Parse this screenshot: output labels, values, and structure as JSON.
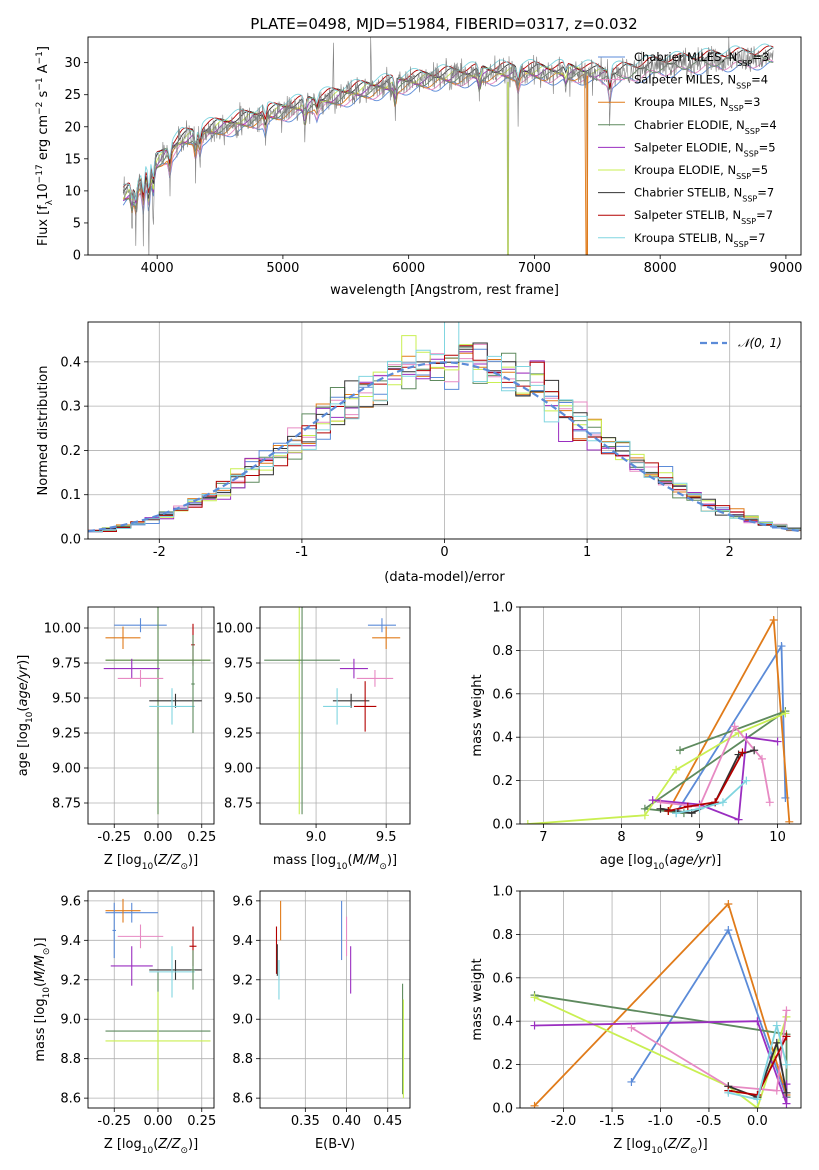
{
  "figure": {
    "title": "PLATE=0498, MJD=51984, FIBERID=0317, z=0.032"
  },
  "colors": {
    "chabrier_miles": "#5b8bd8",
    "salpeter_miles": "#e78ac3",
    "kroupa_miles": "#e07b1a",
    "chabrier_elodie": "#5e8a5e",
    "salpeter_elodie": "#9a2ec0",
    "kroupa_elodie": "#c9ef52",
    "chabrier_stelib": "#333333",
    "salpeter_stelib": "#b30000",
    "kroupa_stelib": "#80d5e0",
    "data": "#7f7f7f",
    "normal": "#5b8bd8",
    "grid": "#b0b0b0"
  },
  "chart_data": [
    {
      "id": "spectrum",
      "type": "line",
      "title": "PLATE=0498, MJD=51984, FIBERID=0317, z=0.032",
      "xlabel": "wavelength [Angstrom, rest frame]",
      "ylabel": "Flux [f_λ 10^-17 erg cm^-2 s^-1 A^-1]",
      "xlim": [
        3450,
        9120
      ],
      "ylim": [
        0,
        34
      ],
      "xticks": [
        4000,
        5000,
        6000,
        7000,
        8000,
        9000
      ],
      "yticks": [
        0,
        5,
        10,
        15,
        20,
        25,
        30
      ],
      "grid": false,
      "legend_position": "right",
      "legend": [
        {
          "label": "Chabrier MILES, N_SSP=3",
          "text": "Chabrier MILES, N",
          "sub": "SSP",
          "tail": "=3",
          "color_key": "chabrier_miles"
        },
        {
          "label": "Salpeter MILES, N_SSP=4",
          "text": "Salpeter MILES, N",
          "sub": "SSP",
          "tail": "=4",
          "color_key": "salpeter_miles"
        },
        {
          "label": "Kroupa MILES, N_SSP=3",
          "text": "Kroupa MILES, N",
          "sub": "SSP",
          "tail": "=3",
          "color_key": "kroupa_miles"
        },
        {
          "label": "Chabrier ELODIE, N_SSP=4",
          "text": "Chabrier ELODIE, N",
          "sub": "SSP",
          "tail": "=4",
          "color_key": "chabrier_elodie"
        },
        {
          "label": "Salpeter ELODIE, N_SSP=5",
          "text": "Salpeter ELODIE, N",
          "sub": "SSP",
          "tail": "=5",
          "color_key": "salpeter_elodie"
        },
        {
          "label": "Kroupa ELODIE, N_SSP=5",
          "text": "Kroupa ELODIE, N",
          "sub": "SSP",
          "tail": "=5",
          "color_key": "kroupa_elodie"
        },
        {
          "label": "Chabrier STELIB, N_SSP=7",
          "text": "Chabrier STELIB, N",
          "sub": "SSP",
          "tail": "=7",
          "color_key": "chabrier_stelib"
        },
        {
          "label": "Salpeter STELIB, N_SSP=7",
          "text": "Salpeter STELIB, N",
          "sub": "SSP",
          "tail": "=7",
          "color_key": "salpeter_stelib"
        },
        {
          "label": "Kroupa STELIB, N_SSP=7",
          "text": "Kroupa STELIB, N",
          "sub": "SSP",
          "tail": "=7",
          "color_key": "kroupa_stelib"
        }
      ],
      "continuum_x": [
        3730,
        3850,
        4000,
        4200,
        4500,
        4800,
        5200,
        5600,
        6000,
        6400,
        6800,
        7200,
        7400,
        7600,
        8000,
        8500,
        8900
      ],
      "continuum_y": [
        9,
        11,
        14.5,
        18,
        20,
        21.5,
        23.5,
        25.5,
        27,
        28,
        28.5,
        28.5,
        28.5,
        28,
        29.5,
        30.5,
        31
      ],
      "features": [
        {
          "x": 3800,
          "depth": -4
        },
        {
          "x": 3830,
          "depth": -5
        },
        {
          "x": 3890,
          "depth": -6
        },
        {
          "x": 3934,
          "depth": -8
        },
        {
          "x": 3968,
          "depth": -6
        },
        {
          "x": 4101,
          "depth": -4
        },
        {
          "x": 4305,
          "depth": -4
        },
        {
          "x": 4340,
          "depth": -3
        },
        {
          "x": 4861,
          "depth": -3
        },
        {
          "x": 5175,
          "depth": -4
        },
        {
          "x": 5270,
          "depth": -2
        },
        {
          "x": 5400,
          "depth": 8
        },
        {
          "x": 5577,
          "depth": 4
        },
        {
          "x": 5700,
          "depth": 6
        },
        {
          "x": 5893,
          "depth": -4
        },
        {
          "x": 6300,
          "depth": 3
        },
        {
          "x": 6563,
          "depth": -3
        },
        {
          "x": 6870,
          "depth": -3
        },
        {
          "x": 7250,
          "depth": -2
        },
        {
          "x": 7600,
          "depth": -4
        }
      ],
      "data_gaps": [
        {
          "x": 6790,
          "note": "masked region (flux drops to 0)"
        },
        {
          "x": 7420,
          "note": "masked region (flux drops to 0)"
        }
      ]
    },
    {
      "id": "residual_histogram",
      "type": "line",
      "xlabel": "(data-model)/error",
      "ylabel": "Normed distribution",
      "xlim": [
        -2.5,
        2.5
      ],
      "ylim": [
        0,
        0.49
      ],
      "xticks": [
        -2,
        -1,
        0,
        1,
        2
      ],
      "yticks": [
        0.0,
        0.1,
        0.2,
        0.3,
        0.4
      ],
      "grid": true,
      "legend_position": "upper right",
      "legend": [
        {
          "label": "N(0,1)",
          "text": "𝒩(0, 1)",
          "style": "dashed",
          "color_key": "normal"
        }
      ],
      "bin_width": 0.1,
      "series_note": "step histograms for the 9 model fits (one per colour) plus dashed standard normal curve"
    },
    {
      "id": "age_vs_Z",
      "type": "scatter",
      "xlabel": "Z [log10(Z/Z⊙)]",
      "ylabel": "age [log10(age/yr)]",
      "xlim": [
        -0.4,
        0.32
      ],
      "ylim": [
        8.6,
        10.15
      ],
      "xticks": [
        -0.25,
        0.0,
        0.25
      ],
      "yticks": [
        8.75,
        9.0,
        9.25,
        9.5,
        9.75,
        10.0
      ],
      "grid": true,
      "points": [
        {
          "color_key": "chabrier_miles",
          "x": -0.1,
          "xerr": 0.15,
          "y": 10.02,
          "yerr": 0.05
        },
        {
          "color_key": "kroupa_miles",
          "x": -0.2,
          "xerr": 0.1,
          "y": 9.93,
          "yerr": 0.08
        },
        {
          "color_key": "kroupa_elodie",
          "x": 0.0,
          "xerr": 0.3,
          "y": 9.77,
          "yerr": 1.1
        },
        {
          "color_key": "chabrier_elodie",
          "x": 0.0,
          "xerr": 0.3,
          "y": 9.77,
          "yerr": 1.1
        },
        {
          "color_key": "salpeter_elodie",
          "x": -0.15,
          "xerr": 0.16,
          "y": 9.71,
          "yerr": 0.07
        },
        {
          "color_key": "salpeter_miles",
          "x": -0.1,
          "xerr": 0.13,
          "y": 9.64,
          "yerr": 0.06
        },
        {
          "color_key": "chabrier_stelib",
          "x": 0.1,
          "xerr": 0.15,
          "y": 9.48,
          "yerr": 0.05
        },
        {
          "color_key": "kroupa_stelib",
          "x": 0.08,
          "xerr": 0.13,
          "y": 9.44,
          "yerr": 0.13
        },
        {
          "color_key": "salpeter_stelib",
          "x": 0.2,
          "xerr": 0.01,
          "y": 9.88,
          "yerr": 0.15
        },
        {
          "color_key": "chabrier_elodie",
          "x": 0.2,
          "xerr": 0.01,
          "y": 9.6,
          "yerr": 0.35
        }
      ]
    },
    {
      "id": "age_vs_mass",
      "type": "scatter",
      "xlabel": "mass [log10(M/M⊙)]",
      "ylabel": "",
      "xlim": [
        8.6,
        9.67
      ],
      "ylim": [
        8.6,
        10.15
      ],
      "xticks": [
        9.0,
        9.5
      ],
      "yticks": [
        8.75,
        9.0,
        9.25,
        9.5,
        9.75,
        10.0
      ],
      "grid": true,
      "points": [
        {
          "color_key": "chabrier_miles",
          "x": 9.47,
          "xerr": 0.1,
          "y": 10.02,
          "yerr": 0.05
        },
        {
          "color_key": "kroupa_miles",
          "x": 9.5,
          "xerr": 0.1,
          "y": 9.93,
          "yerr": 0.08
        },
        {
          "color_key": "kroupa_elodie",
          "x": 8.88,
          "xerr": 0.02,
          "y": 9.77,
          "yerr": 1.1
        },
        {
          "color_key": "chabrier_elodie",
          "x": 8.9,
          "xerr": 0.27,
          "y": 9.77,
          "yerr": 1.1
        },
        {
          "color_key": "salpeter_elodie",
          "x": 9.27,
          "xerr": 0.1,
          "y": 9.71,
          "yerr": 0.07
        },
        {
          "color_key": "salpeter_miles",
          "x": 9.42,
          "xerr": 0.13,
          "y": 9.64,
          "yerr": 0.06
        },
        {
          "color_key": "chabrier_stelib",
          "x": 9.25,
          "xerr": 0.13,
          "y": 9.48,
          "yerr": 0.05
        },
        {
          "color_key": "kroupa_stelib",
          "x": 9.15,
          "xerr": 0.1,
          "y": 9.44,
          "yerr": 0.13
        },
        {
          "color_key": "salpeter_stelib",
          "x": 9.35,
          "xerr": 0.08,
          "y": 9.44,
          "yerr": 0.18
        }
      ]
    },
    {
      "id": "massweight_vs_age",
      "type": "line",
      "xlabel": "age [log10(age/yr)]",
      "ylabel": "mass weight",
      "xlim": [
        6.7,
        10.3
      ],
      "ylim": [
        0,
        1.0
      ],
      "xticks": [
        7,
        8,
        9,
        10
      ],
      "yticks": [
        0.0,
        0.2,
        0.4,
        0.6,
        0.8,
        1.0
      ],
      "grid": true,
      "series": [
        {
          "color_key": "chabrier_miles",
          "x": [
            8.7,
            10.05,
            10.1
          ],
          "y": [
            0.05,
            0.82,
            0.12
          ]
        },
        {
          "color_key": "kroupa_miles",
          "x": [
            8.6,
            9.95,
            10.15
          ],
          "y": [
            0.06,
            0.94,
            0.01
          ]
        },
        {
          "color_key": "chabrier_elodie",
          "x": [
            8.75,
            10.1,
            8.3,
            8.8
          ],
          "y": [
            0.34,
            0.52,
            0.07,
            0.05
          ]
        },
        {
          "color_key": "kroupa_elodie",
          "x": [
            6.8,
            8.3,
            8.7,
            9.5,
            10.1
          ],
          "y": [
            0.0,
            0.04,
            0.25,
            0.42,
            0.51
          ]
        },
        {
          "color_key": "salpeter_elodie",
          "x": [
            8.4,
            9.0,
            9.5,
            9.6,
            10.0
          ],
          "y": [
            0.11,
            0.09,
            0.02,
            0.4,
            0.38
          ]
        },
        {
          "color_key": "salpeter_miles",
          "x": [
            8.5,
            9.0,
            9.45,
            9.8,
            9.9
          ],
          "y": [
            0.1,
            0.08,
            0.45,
            0.3,
            0.1
          ]
        },
        {
          "color_key": "chabrier_stelib",
          "x": [
            8.5,
            8.9,
            9.2,
            9.5,
            9.7
          ],
          "y": [
            0.07,
            0.05,
            0.1,
            0.32,
            0.34
          ]
        },
        {
          "color_key": "salpeter_stelib",
          "x": [
            8.6,
            8.85,
            9.2,
            9.55
          ],
          "y": [
            0.06,
            0.08,
            0.1,
            0.33
          ]
        },
        {
          "color_key": "kroupa_stelib",
          "x": [
            8.7,
            9.0,
            9.3,
            9.6
          ],
          "y": [
            0.05,
            0.07,
            0.1,
            0.2
          ]
        }
      ]
    },
    {
      "id": "mass_vs_Z",
      "type": "scatter",
      "xlabel": "Z [log10(Z/Z⊙)]",
      "ylabel": "mass [log10(M/M⊙)]",
      "xlim": [
        -0.4,
        0.32
      ],
      "ylim": [
        8.55,
        9.65
      ],
      "xticks": [
        -0.25,
        0.0,
        0.25
      ],
      "yticks": [
        8.6,
        8.8,
        9.0,
        9.2,
        9.4,
        9.6
      ],
      "grid": true,
      "points": [
        {
          "color_key": "chabrier_miles",
          "x": -0.15,
          "xerr": 0.15,
          "y": 9.54,
          "yerr": 0.05
        },
        {
          "color_key": "kroupa_miles",
          "x": -0.2,
          "xerr": 0.1,
          "y": 9.55,
          "yerr": 0.06
        },
        {
          "color_key": "salpeter_miles",
          "x": -0.1,
          "xerr": 0.13,
          "y": 9.42,
          "yerr": 0.06
        },
        {
          "color_key": "salpeter_elodie",
          "x": -0.15,
          "xerr": 0.12,
          "y": 9.27,
          "yerr": 0.1
        },
        {
          "color_key": "chabrier_elodie",
          "x": 0.0,
          "xerr": 0.3,
          "y": 8.94,
          "yerr": 0.3
        },
        {
          "color_key": "kroupa_elodie",
          "x": 0.0,
          "xerr": 0.3,
          "y": 8.89,
          "yerr": 0.25
        },
        {
          "color_key": "chabrier_stelib",
          "x": 0.1,
          "xerr": 0.15,
          "y": 9.25,
          "yerr": 0.05
        },
        {
          "color_key": "kroupa_stelib",
          "x": 0.08,
          "xerr": 0.13,
          "y": 9.24,
          "yerr": 0.13
        },
        {
          "color_key": "salpeter_stelib",
          "x": 0.2,
          "xerr": 0.02,
          "y": 9.37,
          "yerr": 0.1
        },
        {
          "color_key": "chabrier_elodie",
          "x": 0.2,
          "xerr": 0.01,
          "y": 9.25,
          "yerr": 0.1
        },
        {
          "color_key": "chabrier_miles",
          "x": -0.25,
          "xerr": 0.01,
          "y": 9.45,
          "yerr": 0.14
        }
      ]
    },
    {
      "id": "mass_vs_ebv",
      "type": "scatter",
      "xlabel": "E(B-V)",
      "ylabel": "",
      "xlim": [
        0.295,
        0.477
      ],
      "ylim": [
        8.55,
        9.65
      ],
      "xticks": [
        0.35,
        0.4,
        0.45
      ],
      "yticks": [
        8.6,
        8.8,
        9.0,
        9.2,
        9.4,
        9.6
      ],
      "grid": true,
      "points": [
        {
          "color_key": "kroupa_miles",
          "x": 0.32,
          "y": 9.5,
          "yerr": 0.1
        },
        {
          "color_key": "salpeter_stelib",
          "x": 0.315,
          "y": 9.35,
          "yerr": 0.12
        },
        {
          "color_key": "chabrier_stelib",
          "x": 0.316,
          "y": 9.3,
          "yerr": 0.08
        },
        {
          "color_key": "kroupa_stelib",
          "x": 0.318,
          "y": 9.2,
          "yerr": 0.1
        },
        {
          "color_key": "chabrier_miles",
          "x": 0.394,
          "y": 9.45,
          "yerr": 0.15
        },
        {
          "color_key": "salpeter_miles",
          "x": 0.4,
          "y": 9.42,
          "yerr": 0.1
        },
        {
          "color_key": "salpeter_elodie",
          "x": 0.405,
          "y": 9.25,
          "yerr": 0.12
        },
        {
          "color_key": "chabrier_elodie",
          "x": 0.468,
          "y": 8.9,
          "yerr": 0.28
        },
        {
          "color_key": "kroupa_elodie",
          "x": 0.469,
          "y": 8.85,
          "yerr": 0.25
        }
      ]
    },
    {
      "id": "massweight_vs_Z",
      "type": "line",
      "xlabel": "Z [log10(Z/Z⊙)]",
      "ylabel": "mass weight",
      "xlim": [
        -2.45,
        0.45
      ],
      "ylim": [
        0,
        1.0
      ],
      "xticks": [
        -2.0,
        -1.5,
        -1.0,
        -0.5,
        0.0
      ],
      "yticks": [
        0.0,
        0.2,
        0.4,
        0.6,
        0.8,
        1.0
      ],
      "grid": true,
      "series": [
        {
          "color_key": "chabrier_miles",
          "x": [
            -1.3,
            -0.3,
            0.3
          ],
          "y": [
            0.12,
            0.82,
            0.05
          ]
        },
        {
          "color_key": "kroupa_miles",
          "x": [
            -2.3,
            -0.3,
            0.3
          ],
          "y": [
            0.01,
            0.94,
            0.06
          ]
        },
        {
          "color_key": "chabrier_elodie",
          "x": [
            -2.3,
            0.3,
            0.3
          ],
          "y": [
            0.52,
            0.34,
            0.05
          ]
        },
        {
          "color_key": "kroupa_elodie",
          "x": [
            -2.3,
            -0.3,
            0.0,
            0.3
          ],
          "y": [
            0.51,
            0.1,
            0.0,
            0.42
          ]
        },
        {
          "color_key": "salpeter_elodie",
          "x": [
            -2.3,
            0.0,
            0.3,
            0.3
          ],
          "y": [
            0.38,
            0.4,
            0.02,
            0.11
          ]
        },
        {
          "color_key": "salpeter_miles",
          "x": [
            -1.3,
            -0.3,
            0.2,
            0.3
          ],
          "y": [
            0.37,
            0.1,
            0.08,
            0.45
          ]
        },
        {
          "color_key": "chabrier_stelib",
          "x": [
            -0.3,
            0.0,
            0.2,
            0.3
          ],
          "y": [
            0.1,
            0.05,
            0.3,
            0.07
          ]
        },
        {
          "color_key": "salpeter_stelib",
          "x": [
            -0.3,
            0.0,
            0.3
          ],
          "y": [
            0.08,
            0.06,
            0.33
          ]
        },
        {
          "color_key": "kroupa_stelib",
          "x": [
            -0.3,
            0.0,
            0.2,
            0.3
          ],
          "y": [
            0.07,
            0.04,
            0.38,
            0.2
          ]
        }
      ]
    }
  ]
}
